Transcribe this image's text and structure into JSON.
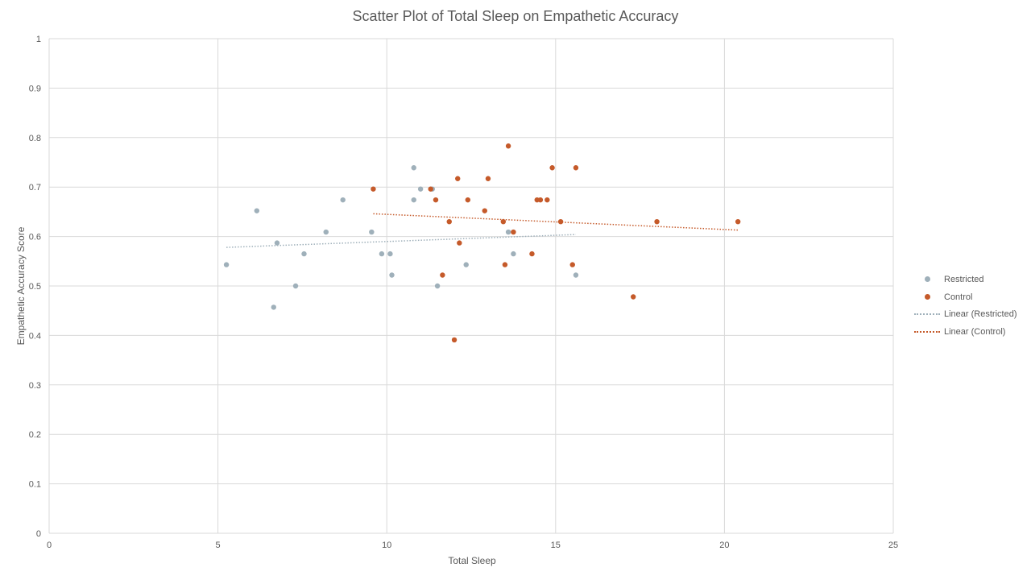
{
  "chart_data": {
    "type": "scatter",
    "title": "Scatter Plot of Total Sleep on Empathetic Accuracy",
    "xlabel": "Total Sleep",
    "ylabel": "Empathetic Accuracy Score",
    "xlim": [
      0,
      25
    ],
    "ylim": [
      0,
      1
    ],
    "x_ticks": [
      "0",
      "5",
      "10",
      "15",
      "20",
      "25"
    ],
    "y_ticks": [
      "0",
      "0.1",
      "0.2",
      "0.3",
      "0.4",
      "0.5",
      "0.6",
      "0.7",
      "0.8",
      "0.9",
      "1"
    ],
    "grid": true,
    "legend_position": "right",
    "series": [
      {
        "name": "Restricted",
        "color": "#9fb0ba",
        "points": [
          [
            5.25,
            0.543
          ],
          [
            6.15,
            0.652
          ],
          [
            6.65,
            0.457
          ],
          [
            6.75,
            0.587
          ],
          [
            7.3,
            0.5
          ],
          [
            7.55,
            0.565
          ],
          [
            8.2,
            0.609
          ],
          [
            8.7,
            0.674
          ],
          [
            9.55,
            0.609
          ],
          [
            9.85,
            0.565
          ],
          [
            10.1,
            0.565
          ],
          [
            10.15,
            0.522
          ],
          [
            10.8,
            0.739
          ],
          [
            10.8,
            0.674
          ],
          [
            11.0,
            0.696
          ],
          [
            11.35,
            0.696
          ],
          [
            11.5,
            0.5
          ],
          [
            12.35,
            0.543
          ],
          [
            13.6,
            0.609
          ],
          [
            13.75,
            0.565
          ],
          [
            15.6,
            0.522
          ]
        ]
      },
      {
        "name": "Control",
        "color": "#c55a2a",
        "points": [
          [
            9.6,
            0.696
          ],
          [
            11.3,
            0.696
          ],
          [
            11.45,
            0.674
          ],
          [
            11.65,
            0.522
          ],
          [
            11.85,
            0.63
          ],
          [
            12.0,
            0.391
          ],
          [
            12.1,
            0.717
          ],
          [
            12.15,
            0.587
          ],
          [
            12.4,
            0.674
          ],
          [
            12.9,
            0.652
          ],
          [
            13.0,
            0.717
          ],
          [
            13.45,
            0.63
          ],
          [
            13.5,
            0.543
          ],
          [
            13.6,
            0.783
          ],
          [
            13.75,
            0.609
          ],
          [
            14.3,
            0.565
          ],
          [
            14.45,
            0.674
          ],
          [
            14.55,
            0.674
          ],
          [
            14.75,
            0.674
          ],
          [
            14.9,
            0.739
          ],
          [
            15.15,
            0.63
          ],
          [
            15.5,
            0.543
          ],
          [
            15.6,
            0.739
          ],
          [
            17.3,
            0.478
          ],
          [
            18.0,
            0.63
          ],
          [
            20.4,
            0.63
          ]
        ]
      }
    ],
    "trendlines": [
      {
        "name": "Linear (Restricted)",
        "color": "#9fb0ba",
        "style": "dotted",
        "x_range": [
          5.25,
          15.6
        ],
        "y_range": [
          0.578,
          0.604
        ]
      },
      {
        "name": "Linear (Control)",
        "color": "#c55a2a",
        "style": "dotted",
        "x_range": [
          9.6,
          20.4
        ],
        "y_range": [
          0.646,
          0.613
        ]
      }
    ]
  }
}
